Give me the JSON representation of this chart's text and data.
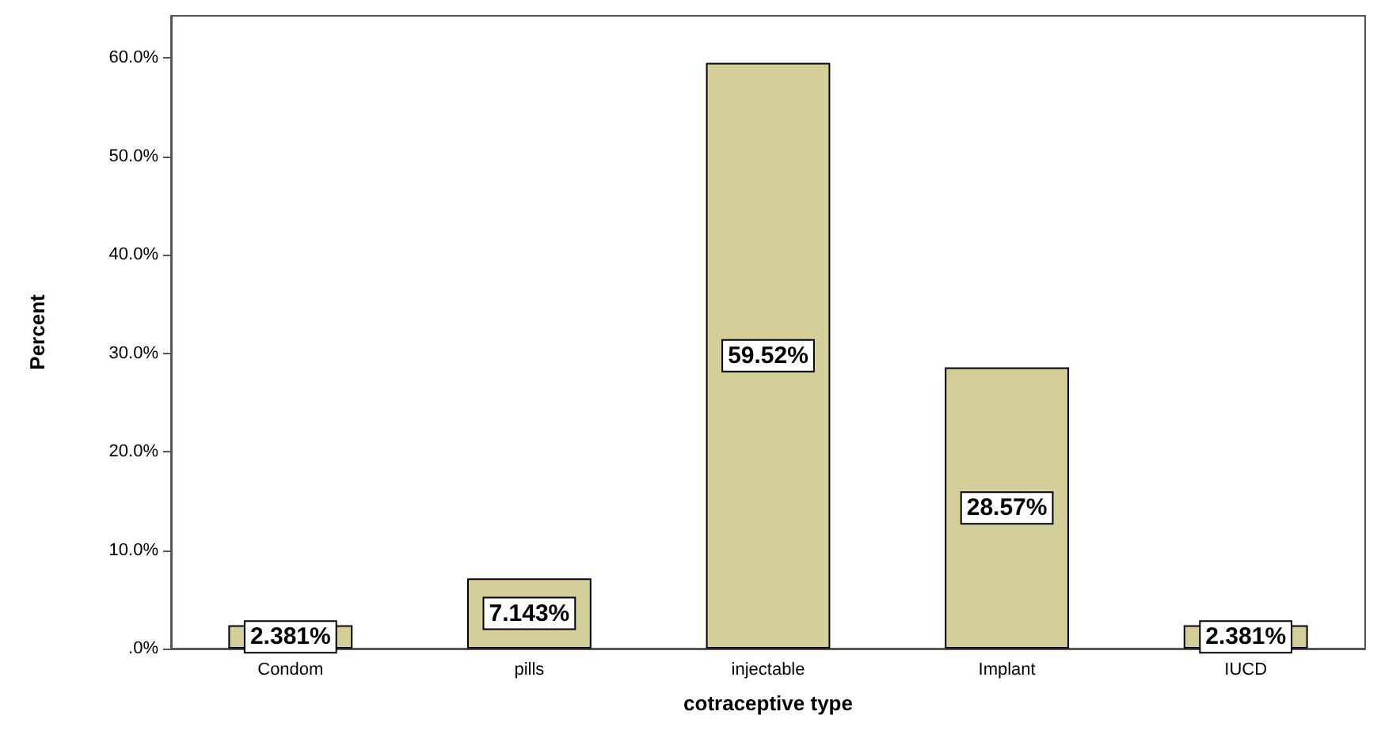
{
  "chart_data": {
    "type": "bar",
    "xlabel": "cotraceptive type",
    "ylabel": "Percent",
    "categories": [
      "Condom",
      "pills",
      "injectable",
      "Implant",
      "IUCD"
    ],
    "values": [
      2.381,
      7.143,
      59.52,
      28.57,
      2.381
    ],
    "value_labels": [
      "2.381%",
      "7.143%",
      "59.52%",
      "28.57%",
      "2.381%"
    ],
    "color": "#d3cf98",
    "ylim": [
      0,
      64.3
    ],
    "yticks": [
      {
        "value": 0,
        "label": ".0%"
      },
      {
        "value": 10,
        "label": "10.0%"
      },
      {
        "value": 20,
        "label": "20.0%"
      },
      {
        "value": 30,
        "label": "30.0%"
      },
      {
        "value": 40,
        "label": "40.0%"
      },
      {
        "value": 50,
        "label": "50.0%"
      },
      {
        "value": 60,
        "label": "60.0%"
      }
    ],
    "grid": false
  }
}
